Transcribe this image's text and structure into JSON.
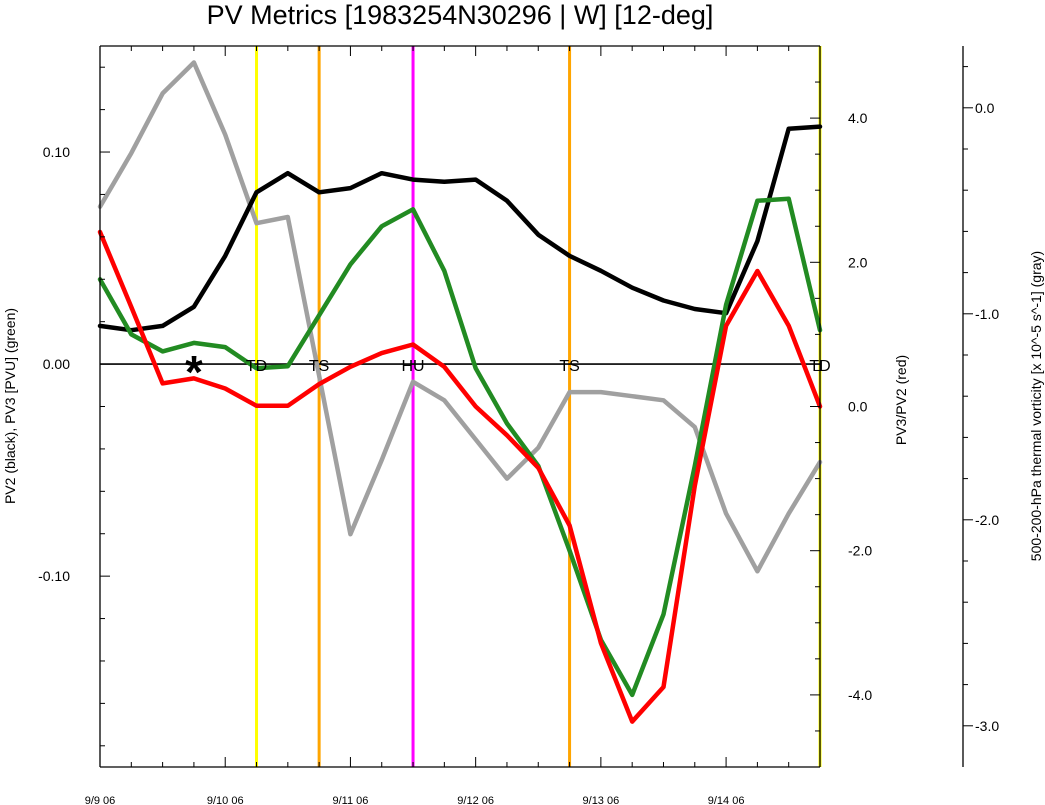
{
  "chart_data": {
    "type": "line",
    "title": "PV Metrics [1983254N30296 | W] [12-deg]",
    "y_left_label": "PV2 (black), PV3 [PVU] (green)",
    "y_right_label": "PV3/PV2 (red)",
    "y_far_right_label": "500-200-hPa thermal vorticity [x 10^-5 s^-1] (gray)",
    "x_tick_labels": [
      "9/9 06",
      "9/10 06",
      "9/11 06",
      "9/12 06",
      "9/13 06",
      "9/14 06"
    ],
    "x_tick_positions": [
      0,
      4,
      8,
      12,
      16,
      20
    ],
    "x_range": [
      0,
      23
    ],
    "y_left_range": [
      -0.19,
      0.15
    ],
    "y_left_ticks": [
      0.1,
      0.0,
      -0.1
    ],
    "y_left_tick_labels": [
      "0.10",
      "0.00",
      "-0.10"
    ],
    "y_right_range": [
      -5.0,
      5.0
    ],
    "y_right_ticks": [
      4.0,
      2.0,
      0.0,
      -2.0,
      -4.0
    ],
    "y_right_tick_labels": [
      "4.0",
      "2.0",
      "0.0",
      "-2.0",
      "-4.0"
    ],
    "y_far_right_range": [
      -3.2,
      0.3
    ],
    "y_far_right_ticks": [
      0.0,
      -1.0,
      -2.0,
      -3.0
    ],
    "y_far_right_tick_labels": [
      "0.0",
      "-1.0",
      "-2.0",
      "-3.0"
    ],
    "series": [
      {
        "axis": "left",
        "color": "#000000",
        "x": [
          0,
          1,
          2,
          3,
          4,
          5,
          6,
          7,
          8,
          9,
          10,
          11,
          12,
          13,
          14,
          15,
          16,
          17,
          18,
          19,
          20,
          21,
          22,
          23
        ],
        "values": [
          0.018,
          0.016,
          0.018,
          0.027,
          0.051,
          0.081,
          0.09,
          0.081,
          0.083,
          0.09,
          0.087,
          0.086,
          0.087,
          0.077,
          0.061,
          0.051,
          0.044,
          0.036,
          0.03,
          0.026,
          0.024,
          0.058,
          0.111,
          0.112
        ]
      },
      {
        "axis": "left",
        "color": "#228b22",
        "x": [
          0,
          1,
          2,
          3,
          4,
          5,
          6,
          7,
          8,
          9,
          10,
          11,
          12,
          13,
          14,
          15,
          16,
          17,
          18,
          19,
          20,
          21,
          22,
          23
        ],
        "values": [
          0.04,
          0.014,
          0.006,
          0.01,
          0.008,
          -0.002,
          -0.001,
          0.023,
          0.047,
          0.065,
          0.073,
          0.044,
          -0.002,
          -0.028,
          -0.048,
          -0.088,
          -0.13,
          -0.156,
          -0.118,
          -0.048,
          0.028,
          0.077,
          0.078,
          0.016
        ]
      },
      {
        "axis": "right",
        "color": "#ff0000",
        "x": [
          0,
          1,
          2,
          3,
          4,
          5,
          6,
          7,
          8,
          9,
          10,
          11,
          12,
          13,
          14,
          15,
          16,
          17,
          18,
          19,
          20,
          21,
          22,
          23
        ],
        "values": [
          2.42,
          1.38,
          0.32,
          0.39,
          0.25,
          0.01,
          0.01,
          0.31,
          0.55,
          0.74,
          0.86,
          0.55,
          0.0,
          -0.4,
          -0.85,
          -1.65,
          -3.28,
          -4.37,
          -3.89,
          -1.1,
          1.12,
          1.88,
          1.12,
          0.0
        ]
      },
      {
        "axis": "far_right",
        "color": "#a0a0a0",
        "x": [
          0,
          1,
          2,
          3,
          4,
          5,
          6,
          7,
          8,
          9,
          10,
          11,
          12,
          13,
          14,
          15,
          16,
          17,
          18,
          19,
          20,
          21,
          22,
          23
        ],
        "values": [
          -0.48,
          -0.22,
          0.07,
          0.22,
          -0.13,
          -0.56,
          -0.53,
          -1.3,
          -2.07,
          -1.71,
          -1.33,
          -1.42,
          -1.61,
          -1.8,
          -1.65,
          -1.38,
          -1.38,
          -1.4,
          -1.42,
          -1.55,
          -1.97,
          -2.25,
          -1.97,
          -1.72
        ]
      }
    ],
    "vertical_lines": [
      {
        "x": 5.0,
        "color": "#ffff00",
        "label": "TD"
      },
      {
        "x": 7.0,
        "color": "#ffa500",
        "label": "TS"
      },
      {
        "x": 10.0,
        "color": "#ff00ff",
        "label": "HU"
      },
      {
        "x": 15.0,
        "color": "#ffa500",
        "label": "TS"
      },
      {
        "x": 23.0,
        "color": "#ffff00",
        "label": "TD"
      }
    ],
    "marker": {
      "x": 3.0,
      "y": 0.0,
      "symbol": "*"
    }
  }
}
